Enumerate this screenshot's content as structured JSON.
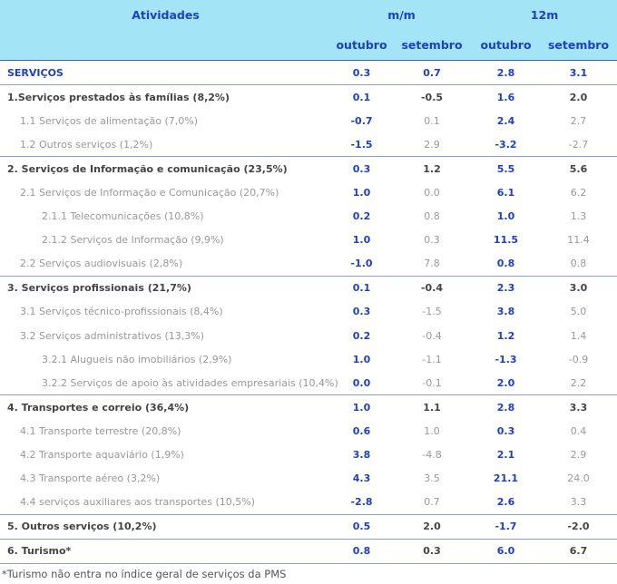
{
  "table": {
    "header": {
      "activity": "Atividades",
      "group_mm": "m/m",
      "group_12m": "12m",
      "columns": [
        "outubro",
        "setembro",
        "outubro",
        "setembro"
      ]
    },
    "rows": [
      {
        "label": "SERVIÇOS",
        "level": 0,
        "values": [
          "0.3",
          "0.7",
          "2.8",
          "3.1"
        ]
      },
      {
        "label": "1.Serviços prestados às famílias (8,2%)",
        "level": 1,
        "values": [
          "0.1",
          "-0.5",
          "1.6",
          "2.0"
        ]
      },
      {
        "label": "1.1 Serviços de alimentação (7,0%)",
        "level": 2,
        "values": [
          "-0.7",
          "0.1",
          "2.4",
          "2.7"
        ]
      },
      {
        "label": "1.2 Outros serviços (1,2%)",
        "level": 2,
        "values": [
          "-1.5",
          "2.9",
          "-3.2",
          "-2.7"
        ]
      },
      {
        "label": "2. Serviços de Informação e comunicação (23,5%)",
        "level": 1,
        "values": [
          "0.3",
          "1.2",
          "5.5",
          "5.6"
        ]
      },
      {
        "label": "2.1 Serviços de Informação e Comunicação (20,7%)",
        "level": 2,
        "values": [
          "1.0",
          "0.0",
          "6.1",
          "6.2"
        ]
      },
      {
        "label": "2.1.1 Telecomunicações (10,8%)",
        "level": 3,
        "values": [
          "0.2",
          "0.8",
          "1.0",
          "1.3"
        ]
      },
      {
        "label": "2.1.2 Serviços de Informação (9,9%)",
        "level": 3,
        "values": [
          "1.0",
          "0.3",
          "11.5",
          "11.4"
        ]
      },
      {
        "label": "2.2 Serviços audiovisuais (2,8%)",
        "level": 2,
        "values": [
          "-1.0",
          "7.8",
          "0.8",
          "0.8"
        ]
      },
      {
        "label": "3. Serviços profissionais (21,7%)",
        "level": 1,
        "values": [
          "0.1",
          "-0.4",
          "2.3",
          "3.0"
        ]
      },
      {
        "label": "3.1 Serviços técnico-profissionais (8,4%)",
        "level": 2,
        "values": [
          "0.3",
          "-1.5",
          "3.8",
          "5.0"
        ]
      },
      {
        "label": "3.2 Serviços administrativos (13,3%)",
        "level": 2,
        "values": [
          "0.2",
          "-0.4",
          "1.2",
          "1.4"
        ]
      },
      {
        "label": "3.2.1 Alugueis não imobiliários (2,9%)",
        "level": 3,
        "values": [
          "1.0",
          "-1.1",
          "-1.3",
          "-0.9"
        ]
      },
      {
        "label": "3.2.2 Serviços de apoio às atividades empresariais (10,4%)",
        "level": 3,
        "values": [
          "0.0",
          "-0.1",
          "2.0",
          "2.2"
        ]
      },
      {
        "label": "4. Transportes e correio (36,4%)",
        "level": 1,
        "values": [
          "1.0",
          "1.1",
          "2.8",
          "3.3"
        ]
      },
      {
        "label": "4.1 Transporte terrestre (20,8%)",
        "level": 2,
        "values": [
          "0.6",
          "1.0",
          "0.3",
          "0.4"
        ]
      },
      {
        "label": "4.2 Transporte aquaviário (1,9%)",
        "level": 2,
        "values": [
          "3.8",
          "-4.8",
          "2.1",
          "2.9"
        ]
      },
      {
        "label": "4.3 Transporte aéreo (3,2%)",
        "level": 2,
        "values": [
          "4.3",
          "3.5",
          "21.1",
          "24.0"
        ]
      },
      {
        "label": "4.4 serviços auxiliares aos transportes (10,5%)",
        "level": 2,
        "values": [
          "-2.8",
          "0.7",
          "2.6",
          "3.3"
        ]
      },
      {
        "label": "5. Outros serviços (10,2%)",
        "level": 1,
        "values": [
          "0.5",
          "2.0",
          "-1.7",
          "-2.0"
        ]
      },
      {
        "label": "6. Turismo*",
        "level": 1,
        "values": [
          "0.8",
          "0.3",
          "6.0",
          "6.7"
        ]
      }
    ]
  },
  "footnote": "*Turismo não entra no índice geral de serviços da PMS"
}
